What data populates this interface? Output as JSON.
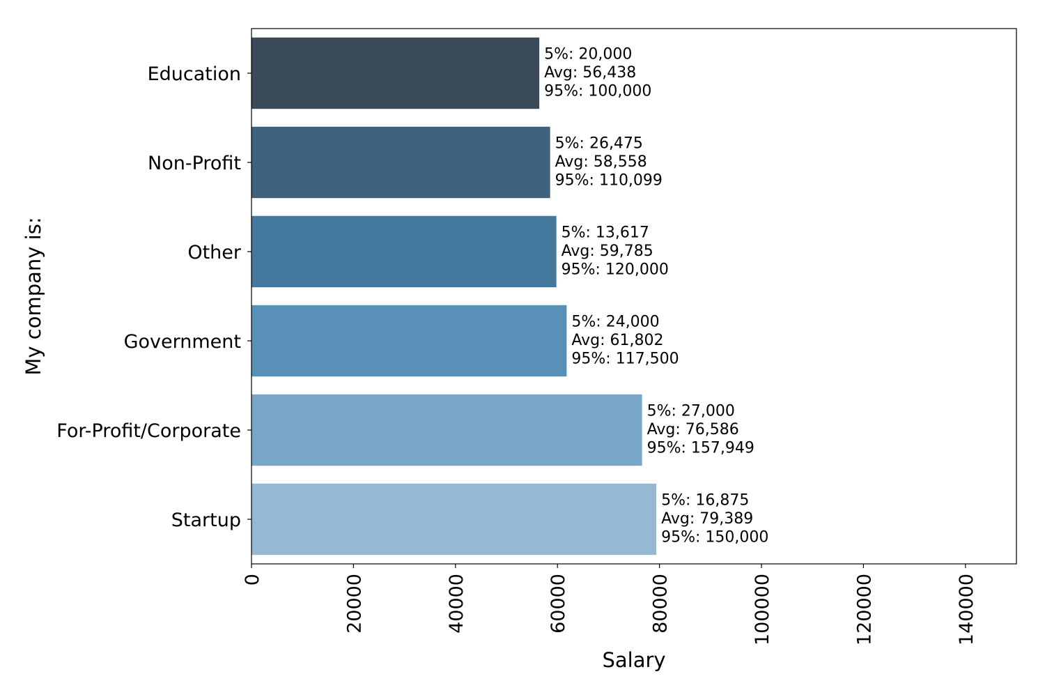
{
  "chart_data": {
    "type": "bar",
    "orientation": "horizontal",
    "title": "",
    "xlabel": "Salary",
    "ylabel": "My company is:",
    "categories": [
      "Education",
      "Non-Profit",
      "Other",
      "Government",
      "For-Profit/Corporate",
      "Startup"
    ],
    "values": [
      56438,
      58558,
      59785,
      61802,
      76586,
      79389
    ],
    "p5": [
      20000,
      26475,
      13617,
      24000,
      27000,
      16875
    ],
    "p95": [
      100000,
      110099,
      120000,
      117500,
      157949,
      150000
    ],
    "annotations": [
      [
        "5%: 20,000",
        "Avg: 56,438",
        "95%: 100,000"
      ],
      [
        "5%: 26,475",
        "Avg: 58,558",
        "95%: 110,099"
      ],
      [
        "5%: 13,617",
        "Avg: 59,785",
        "95%: 120,000"
      ],
      [
        "5%: 24,000",
        "Avg: 61,802",
        "95%: 117,500"
      ],
      [
        "5%: 27,000",
        "Avg: 76,586",
        "95%: 157,949"
      ],
      [
        "5%: 16,875",
        "Avg: 79,389",
        "95%: 150,000"
      ]
    ],
    "colors": [
      "#3a4a59",
      "#40637d",
      "#45789d",
      "#5890b8",
      "#77a6c6",
      "#96b9d3"
    ],
    "xlim": [
      0,
      150000
    ],
    "xticks": [
      0,
      20000,
      40000,
      60000,
      80000,
      100000,
      120000,
      140000
    ],
    "xtick_labels": [
      "0",
      "20000",
      "40000",
      "60000",
      "80000",
      "100000",
      "120000",
      "140000"
    ],
    "grid": false,
    "legend": "none"
  }
}
